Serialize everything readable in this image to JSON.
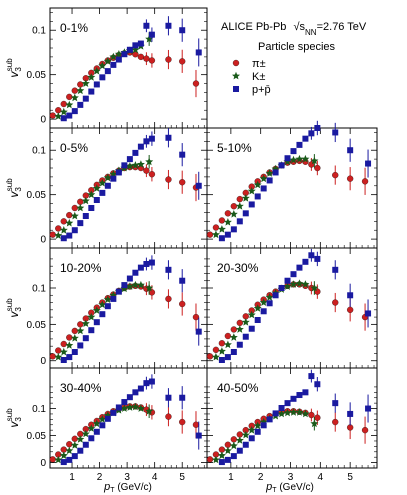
{
  "legend": {
    "title": "ALICE Pb-Pb",
    "energy": "√s",
    "energy_sub": "NN",
    "energy_val": "=2.76 TeV",
    "header": "Particle species",
    "items": [
      {
        "label": "π±",
        "color": "#cc2020",
        "marker": "circle"
      },
      {
        "label": "K±",
        "color": "#1a5a1a",
        "marker": "star"
      },
      {
        "label": "p+p̄",
        "color": "#1a1aa0",
        "marker": "square"
      }
    ]
  },
  "axes": {
    "ylabel_main": "v",
    "ylabel_sub": "3",
    "ylabel_sup": "sub",
    "xlabel_main": "p",
    "xlabel_sub": "T",
    "xlabel_unit": " (GeV/c)",
    "yticks": [
      "0",
      "0.05",
      "0.1"
    ],
    "xticks": [
      "1",
      "2",
      "3",
      "4",
      "5"
    ]
  },
  "chart_data": [
    {
      "type": "scatter",
      "panel": "0-1%",
      "xlim": [
        0.2,
        5.9
      ],
      "ylim": [
        -0.01,
        0.125
      ],
      "series": [
        {
          "name": "π±",
          "x": [
            0.3,
            0.5,
            0.7,
            0.9,
            1.1,
            1.3,
            1.5,
            1.7,
            1.9,
            2.1,
            2.3,
            2.5,
            2.7,
            2.9,
            3.1,
            3.3,
            3.5,
            3.7,
            3.9,
            4.5,
            5.0,
            5.5
          ],
          "values": [
            0.004,
            0.01,
            0.017,
            0.025,
            0.032,
            0.039,
            0.046,
            0.052,
            0.057,
            0.062,
            0.066,
            0.069,
            0.072,
            0.074,
            0.075,
            0.073,
            0.07,
            0.068,
            0.066,
            0.067,
            0.065,
            0.04
          ]
        },
        {
          "name": "K±",
          "x": [
            0.5,
            0.7,
            0.9,
            1.1,
            1.3,
            1.5,
            1.7,
            1.9,
            2.1,
            2.3,
            2.5,
            2.7,
            2.9,
            3.1,
            3.3,
            3.5,
            3.8
          ],
          "values": [
            0.003,
            0.008,
            0.016,
            0.024,
            0.032,
            0.04,
            0.047,
            0.054,
            0.06,
            0.065,
            0.07,
            0.073,
            0.075,
            0.077,
            0.078,
            0.082,
            0.09
          ]
        },
        {
          "name": "p+p̄",
          "x": [
            0.7,
            0.9,
            1.1,
            1.3,
            1.5,
            1.7,
            1.9,
            2.1,
            2.3,
            2.5,
            2.7,
            2.9,
            3.1,
            3.3,
            3.5,
            3.7,
            3.9,
            4.5,
            5.0,
            5.6
          ],
          "values": [
            0.001,
            0.004,
            0.009,
            0.016,
            0.023,
            0.031,
            0.039,
            0.047,
            0.054,
            0.061,
            0.067,
            0.073,
            0.078,
            0.083,
            0.085,
            0.105,
            0.095,
            0.105,
            0.1,
            0.075
          ]
        }
      ]
    },
    {
      "type": "scatter",
      "panel": "0-5%",
      "xlim": [
        0.2,
        5.9
      ],
      "ylim": [
        -0.01,
        0.125
      ],
      "series": [
        {
          "name": "π±",
          "x": [
            0.3,
            0.5,
            0.7,
            0.9,
            1.1,
            1.3,
            1.5,
            1.7,
            1.9,
            2.1,
            2.3,
            2.5,
            2.7,
            2.9,
            3.1,
            3.3,
            3.5,
            3.7,
            3.9,
            4.5,
            5.0,
            5.5
          ],
          "values": [
            0.005,
            0.012,
            0.02,
            0.027,
            0.035,
            0.042,
            0.049,
            0.055,
            0.061,
            0.066,
            0.07,
            0.074,
            0.077,
            0.08,
            0.081,
            0.081,
            0.08,
            0.077,
            0.073,
            0.067,
            0.064,
            0.058
          ]
        },
        {
          "name": "K±",
          "x": [
            0.5,
            0.7,
            0.9,
            1.1,
            1.3,
            1.5,
            1.7,
            1.9,
            2.1,
            2.3,
            2.5,
            2.7,
            2.9,
            3.1,
            3.3,
            3.5,
            3.8
          ],
          "values": [
            0.004,
            0.01,
            0.018,
            0.026,
            0.035,
            0.043,
            0.05,
            0.057,
            0.063,
            0.069,
            0.073,
            0.077,
            0.08,
            0.082,
            0.083,
            0.084,
            0.087
          ]
        },
        {
          "name": "p+p̄",
          "x": [
            0.7,
            0.9,
            1.1,
            1.3,
            1.5,
            1.7,
            1.9,
            2.1,
            2.3,
            2.5,
            2.7,
            2.9,
            3.1,
            3.3,
            3.5,
            3.7,
            3.9,
            4.5,
            5.0,
            5.6
          ],
          "values": [
            0.001,
            0.004,
            0.01,
            0.018,
            0.026,
            0.035,
            0.044,
            0.052,
            0.06,
            0.068,
            0.075,
            0.083,
            0.09,
            0.097,
            0.104,
            0.11,
            0.113,
            0.114,
            0.095,
            0.06
          ]
        }
      ]
    },
    {
      "type": "scatter",
      "panel": "5-10%",
      "xlim": [
        0.2,
        5.9
      ],
      "ylim": [
        -0.01,
        0.125
      ],
      "series": [
        {
          "name": "π±",
          "x": [
            0.3,
            0.5,
            0.7,
            0.9,
            1.1,
            1.3,
            1.5,
            1.7,
            1.9,
            2.1,
            2.3,
            2.5,
            2.7,
            2.9,
            3.1,
            3.3,
            3.5,
            3.7,
            3.9,
            4.5,
            5.0,
            5.5
          ],
          "values": [
            0.005,
            0.013,
            0.021,
            0.029,
            0.037,
            0.045,
            0.052,
            0.059,
            0.065,
            0.07,
            0.075,
            0.079,
            0.083,
            0.086,
            0.087,
            0.088,
            0.087,
            0.084,
            0.08,
            0.072,
            0.068,
            0.065
          ]
        },
        {
          "name": "K±",
          "x": [
            0.5,
            0.7,
            0.9,
            1.1,
            1.3,
            1.5,
            1.7,
            1.9,
            2.1,
            2.3,
            2.5,
            2.7,
            2.9,
            3.1,
            3.3,
            3.5,
            3.8
          ],
          "values": [
            0.005,
            0.011,
            0.019,
            0.028,
            0.037,
            0.046,
            0.054,
            0.061,
            0.068,
            0.074,
            0.079,
            0.083,
            0.087,
            0.089,
            0.09,
            0.09,
            0.088
          ]
        },
        {
          "name": "p+p̄",
          "x": [
            0.7,
            0.9,
            1.1,
            1.3,
            1.5,
            1.7,
            1.9,
            2.1,
            2.3,
            2.5,
            2.7,
            2.9,
            3.1,
            3.3,
            3.5,
            3.7,
            3.9,
            4.5,
            5.0,
            5.6
          ],
          "values": [
            0.001,
            0.005,
            0.011,
            0.02,
            0.029,
            0.039,
            0.048,
            0.057,
            0.066,
            0.075,
            0.083,
            0.091,
            0.099,
            0.106,
            0.113,
            0.119,
            0.125,
            0.12,
            0.1,
            0.085
          ]
        }
      ]
    },
    {
      "type": "scatter",
      "panel": "10-20%",
      "xlim": [
        0.2,
        5.9
      ],
      "ylim": [
        -0.01,
        0.155
      ],
      "series": [
        {
          "name": "π±",
          "x": [
            0.3,
            0.5,
            0.7,
            0.9,
            1.1,
            1.3,
            1.5,
            1.7,
            1.9,
            2.1,
            2.3,
            2.5,
            2.7,
            2.9,
            3.1,
            3.3,
            3.5,
            3.7,
            3.9,
            4.5,
            5.0,
            5.5
          ],
          "values": [
            0.006,
            0.014,
            0.023,
            0.032,
            0.041,
            0.05,
            0.058,
            0.066,
            0.073,
            0.08,
            0.086,
            0.091,
            0.096,
            0.1,
            0.102,
            0.103,
            0.102,
            0.099,
            0.094,
            0.085,
            0.078,
            0.06
          ]
        },
        {
          "name": "K±",
          "x": [
            0.5,
            0.7,
            0.9,
            1.1,
            1.3,
            1.5,
            1.7,
            1.9,
            2.1,
            2.3,
            2.5,
            2.7,
            2.9,
            3.1,
            3.3,
            3.5,
            3.8
          ],
          "values": [
            0.005,
            0.012,
            0.021,
            0.031,
            0.041,
            0.051,
            0.06,
            0.069,
            0.077,
            0.084,
            0.09,
            0.095,
            0.099,
            0.102,
            0.104,
            0.104,
            0.1
          ]
        },
        {
          "name": "p+p̄",
          "x": [
            0.7,
            0.9,
            1.1,
            1.3,
            1.5,
            1.7,
            1.9,
            2.1,
            2.3,
            2.5,
            2.7,
            2.9,
            3.1,
            3.3,
            3.5,
            3.7,
            3.9,
            4.5,
            5.0,
            5.6
          ],
          "values": [
            0.001,
            0.005,
            0.012,
            0.021,
            0.031,
            0.042,
            0.053,
            0.064,
            0.075,
            0.085,
            0.095,
            0.104,
            0.113,
            0.121,
            0.128,
            0.133,
            0.135,
            0.125,
            0.11,
            0.04
          ]
        }
      ]
    },
    {
      "type": "scatter",
      "panel": "20-30%",
      "xlim": [
        0.2,
        5.9
      ],
      "ylim": [
        -0.01,
        0.155
      ],
      "series": [
        {
          "name": "π±",
          "x": [
            0.3,
            0.5,
            0.7,
            0.9,
            1.1,
            1.3,
            1.5,
            1.7,
            1.9,
            2.1,
            2.3,
            2.5,
            2.7,
            2.9,
            3.1,
            3.3,
            3.5,
            3.7,
            3.9,
            4.5,
            5.0,
            5.5
          ],
          "values": [
            0.006,
            0.015,
            0.024,
            0.034,
            0.043,
            0.052,
            0.061,
            0.069,
            0.077,
            0.084,
            0.09,
            0.095,
            0.1,
            0.103,
            0.105,
            0.105,
            0.103,
            0.1,
            0.095,
            0.08,
            0.07,
            0.06
          ]
        },
        {
          "name": "K±",
          "x": [
            0.5,
            0.7,
            0.9,
            1.1,
            1.3,
            1.5,
            1.7,
            1.9,
            2.1,
            2.3,
            2.5,
            2.7,
            2.9,
            3.1,
            3.3,
            3.5,
            3.8
          ],
          "values": [
            0.005,
            0.013,
            0.022,
            0.032,
            0.043,
            0.053,
            0.063,
            0.072,
            0.08,
            0.087,
            0.093,
            0.098,
            0.102,
            0.105,
            0.106,
            0.105,
            0.1
          ]
        },
        {
          "name": "p+p̄",
          "x": [
            0.7,
            0.9,
            1.1,
            1.3,
            1.5,
            1.7,
            1.9,
            2.1,
            2.3,
            2.5,
            2.7,
            2.9,
            3.1,
            3.3,
            3.5,
            3.7,
            3.9,
            4.5,
            5.0,
            5.6
          ],
          "values": [
            0.001,
            0.005,
            0.012,
            0.022,
            0.033,
            0.044,
            0.056,
            0.068,
            0.079,
            0.09,
            0.1,
            0.11,
            0.119,
            0.128,
            0.136,
            0.145,
            0.14,
            0.125,
            0.09,
            0.065
          ]
        }
      ]
    },
    {
      "type": "scatter",
      "panel": "30-40%",
      "xlim": [
        0.2,
        5.9
      ],
      "ylim": [
        -0.01,
        0.175
      ],
      "series": [
        {
          "name": "π±",
          "x": [
            0.3,
            0.5,
            0.7,
            0.9,
            1.1,
            1.3,
            1.5,
            1.7,
            1.9,
            2.1,
            2.3,
            2.5,
            2.7,
            2.9,
            3.1,
            3.3,
            3.5,
            3.7,
            3.9,
            4.5,
            5.0,
            5.5
          ],
          "values": [
            0.006,
            0.015,
            0.024,
            0.034,
            0.044,
            0.053,
            0.062,
            0.07,
            0.077,
            0.084,
            0.09,
            0.095,
            0.099,
            0.102,
            0.104,
            0.104,
            0.102,
            0.098,
            0.093,
            0.085,
            0.075,
            0.07
          ]
        },
        {
          "name": "K±",
          "x": [
            0.5,
            0.7,
            0.9,
            1.1,
            1.3,
            1.5,
            1.7,
            1.9,
            2.1,
            2.3,
            2.5,
            2.7,
            2.9,
            3.1,
            3.3,
            3.5,
            3.8
          ],
          "values": [
            0.005,
            0.013,
            0.022,
            0.032,
            0.043,
            0.053,
            0.063,
            0.072,
            0.08,
            0.087,
            0.092,
            0.097,
            0.1,
            0.102,
            0.103,
            0.1,
            0.095
          ]
        },
        {
          "name": "p+p̄",
          "x": [
            0.7,
            0.9,
            1.1,
            1.3,
            1.5,
            1.7,
            1.9,
            2.1,
            2.3,
            2.5,
            2.7,
            2.9,
            3.1,
            3.3,
            3.5,
            3.7,
            3.9,
            4.5,
            5.0,
            5.6
          ],
          "values": [
            0.001,
            0.005,
            0.012,
            0.022,
            0.033,
            0.045,
            0.057,
            0.069,
            0.081,
            0.092,
            0.102,
            0.112,
            0.121,
            0.13,
            0.137,
            0.147,
            0.15,
            0.12,
            0.12,
            0.05
          ]
        }
      ]
    },
    {
      "type": "scatter",
      "panel": "40-50%",
      "xlim": [
        0.2,
        5.9
      ],
      "ylim": [
        -0.01,
        0.175
      ],
      "series": [
        {
          "name": "π±",
          "x": [
            0.3,
            0.5,
            0.7,
            0.9,
            1.1,
            1.3,
            1.5,
            1.7,
            1.9,
            2.1,
            2.3,
            2.5,
            2.7,
            2.9,
            3.1,
            3.3,
            3.5,
            3.7,
            3.9,
            4.5,
            5.0,
            5.5
          ],
          "values": [
            0.006,
            0.015,
            0.024,
            0.033,
            0.043,
            0.052,
            0.06,
            0.068,
            0.075,
            0.081,
            0.086,
            0.09,
            0.093,
            0.095,
            0.095,
            0.094,
            0.092,
            0.088,
            0.083,
            0.075,
            0.065,
            0.06
          ]
        },
        {
          "name": "K±",
          "x": [
            0.5,
            0.7,
            0.9,
            1.1,
            1.3,
            1.5,
            1.7,
            1.9,
            2.1,
            2.3,
            2.5,
            2.7,
            2.9,
            3.1,
            3.3,
            3.5,
            3.8
          ],
          "values": [
            0.005,
            0.013,
            0.022,
            0.031,
            0.041,
            0.051,
            0.06,
            0.068,
            0.075,
            0.081,
            0.086,
            0.09,
            0.092,
            0.093,
            0.093,
            0.09,
            0.072
          ]
        },
        {
          "name": "p+p̄",
          "x": [
            0.7,
            0.9,
            1.1,
            1.3,
            1.5,
            1.7,
            1.9,
            2.1,
            2.3,
            2.5,
            2.7,
            2.9,
            3.1,
            3.3,
            3.5,
            3.7,
            3.9,
            4.5,
            5.0,
            5.6
          ],
          "values": [
            0.001,
            0.005,
            0.012,
            0.022,
            0.033,
            0.045,
            0.057,
            0.069,
            0.08,
            0.091,
            0.101,
            0.11,
            0.118,
            0.125,
            0.13,
            0.16,
            0.145,
            0.11,
            0.09,
            0.1
          ]
        }
      ]
    }
  ]
}
